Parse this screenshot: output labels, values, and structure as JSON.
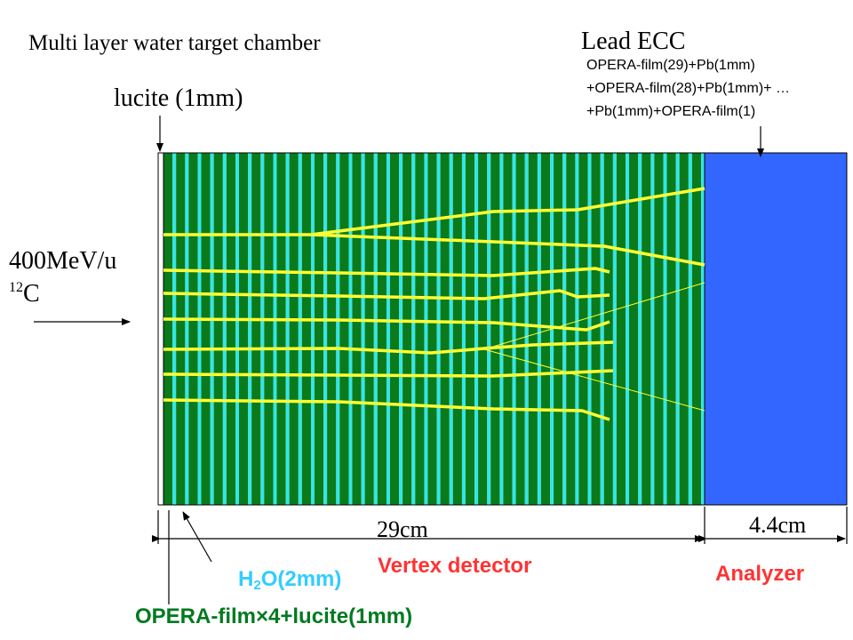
{
  "title": "Multi layer water target chamber",
  "lead_ecc": {
    "label": "Lead ECC",
    "structure": [
      "OPERA-film(29)+Pb(1mm)",
      "+OPERA-film(28)+Pb(1mm)+ …",
      "+Pb(1mm)+OPERA-film(1)"
    ]
  },
  "lucite_label": "lucite (1mm)",
  "beam": {
    "energy": "400MeV/u",
    "mass_number": "12",
    "element": "C"
  },
  "dimensions": {
    "vertex_length": "29cm",
    "analyzer_length": "4.4cm"
  },
  "labels": {
    "water_prefix": "H",
    "water_subscript": "2",
    "water_suffix": "O(2mm)",
    "vertex_detector": "Vertex detector",
    "analyzer": "Analyzer",
    "opera_film": "OPERA-film×4+lucite(1mm)"
  },
  "colors": {
    "water_green": "#0b7a1a",
    "film_cyan": "#33e6e6",
    "analyzer_blue": "#3366ff",
    "track_yellow": "#ffff33",
    "label_red": "#ff3333",
    "label_cyan": "#33ccff",
    "label_green": "#007a1f"
  },
  "geometry_counts": {
    "water_layers": 43
  }
}
